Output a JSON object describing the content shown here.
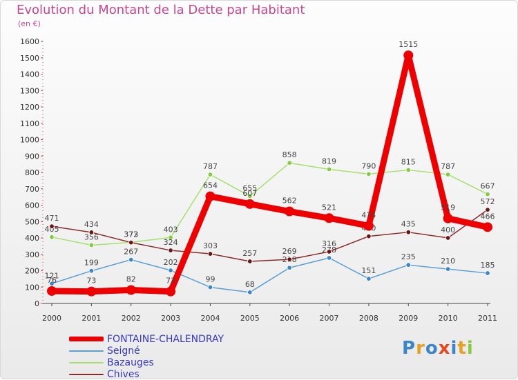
{
  "header": {
    "title": "Evolution du Montant de la Dette par Habitant",
    "unit": "(en €)"
  },
  "colors": {
    "title": "#c8468f",
    "legend_text": "#3838c8"
  },
  "chart_data": {
    "type": "line",
    "title": "Evolution du Montant de la Dette par Habitant",
    "ylabel": "(en €)",
    "xlabel": "",
    "ylim": [
      0,
      1600
    ],
    "yticks": [
      0,
      100,
      200,
      300,
      400,
      500,
      600,
      700,
      800,
      900,
      1000,
      1100,
      1200,
      1300,
      1400,
      1500,
      1600
    ],
    "x": [
      "2000",
      "2001",
      "2002",
      "2003",
      "2004",
      "2005",
      "2006",
      "2007",
      "2008",
      "2009",
      "2010",
      "2011"
    ],
    "legend_position": "bottom-left",
    "grid": false,
    "series": [
      {
        "name": "FONTAINE-CHALENDRAY",
        "color": "#ee0000",
        "emphasis": true,
        "values": [
          76,
          73,
          82,
          73,
          654,
          607,
          562,
          521,
          474,
          1515,
          519,
          466
        ]
      },
      {
        "name": "Seigné",
        "color": "#5a9fd4",
        "point_color": "#3a86c8",
        "values": [
          121,
          199,
          267,
          202,
          99,
          68,
          218,
          278,
          151,
          235,
          210,
          185
        ]
      },
      {
        "name": "Bazauges",
        "color": "#a6e06c",
        "point_color": "#84cc3c",
        "values": [
          405,
          356,
          373,
          403,
          787,
          655,
          858,
          819,
          790,
          815,
          787,
          667
        ]
      },
      {
        "name": "Chives",
        "color": "#8c2a2a",
        "point_color": "#6e1414",
        "values": [
          471,
          434,
          372,
          324,
          303,
          257,
          269,
          316,
          410,
          435,
          400,
          572
        ]
      }
    ]
  },
  "logo": {
    "text": "Proxiti",
    "letter_colors": [
      "#3a86c8",
      "#e8a020",
      "#3a86c8",
      "#e84820",
      "#3a86c8",
      "#e8a020",
      "#84cc3c"
    ]
  }
}
